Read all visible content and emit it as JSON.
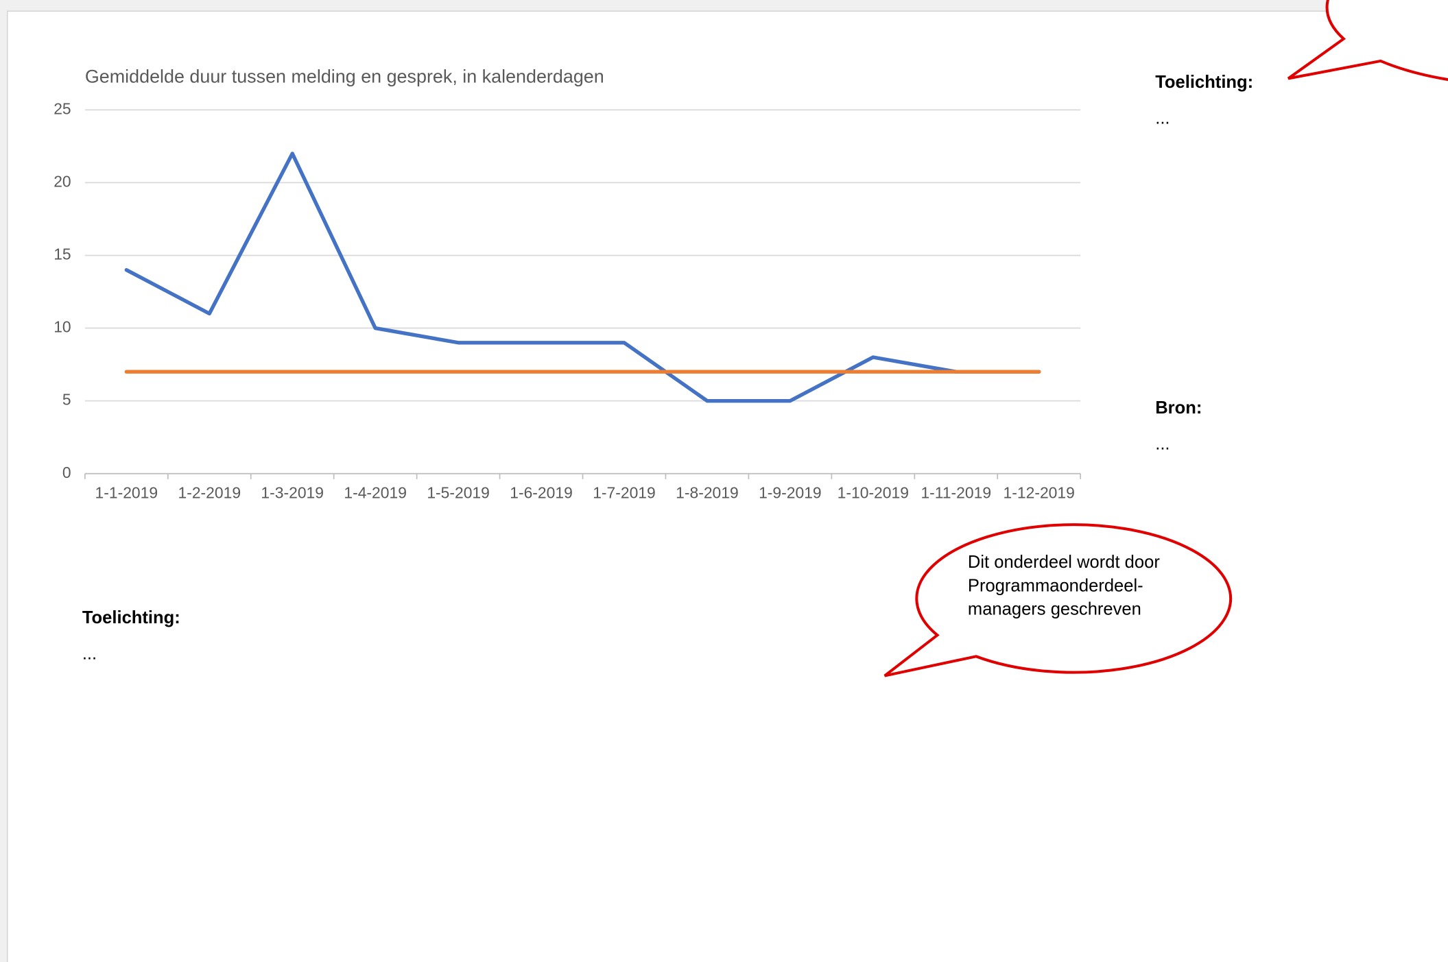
{
  "chart_data": {
    "type": "line",
    "title": "Gemiddelde duur tussen melding en gesprek, in kalenderdagen",
    "categories": [
      "1-1-2019",
      "1-2-2019",
      "1-3-2019",
      "1-4-2019",
      "1-5-2019",
      "1-6-2019",
      "1-7-2019",
      "1-8-2019",
      "1-9-2019",
      "1-10-2019",
      "1-11-2019",
      "1-12-2019"
    ],
    "series": [
      {
        "color": "#4472c4",
        "values": [
          14,
          11,
          22,
          10,
          9,
          9,
          9,
          5,
          5,
          8,
          7,
          7
        ]
      },
      {
        "color": "#ed7d31",
        "values": [
          7,
          7,
          7,
          7,
          7,
          7,
          7,
          7,
          7,
          7,
          7,
          7
        ]
      }
    ],
    "ylim": [
      0,
      25
    ],
    "yticks": [
      0,
      5,
      10,
      15,
      20,
      25
    ],
    "grid": true
  },
  "side_panel": {
    "explanation_label": "Toelichting:",
    "explanation_text": "...",
    "source_label": "Bron:",
    "source_text": "..."
  },
  "bottom_section": {
    "explanation_label": "Toelichting:",
    "explanation_text": "..."
  },
  "callout": {
    "lines": [
      "Dit onderdeel wordt door",
      "Programmaonderdeel-",
      "managers geschreven"
    ]
  }
}
